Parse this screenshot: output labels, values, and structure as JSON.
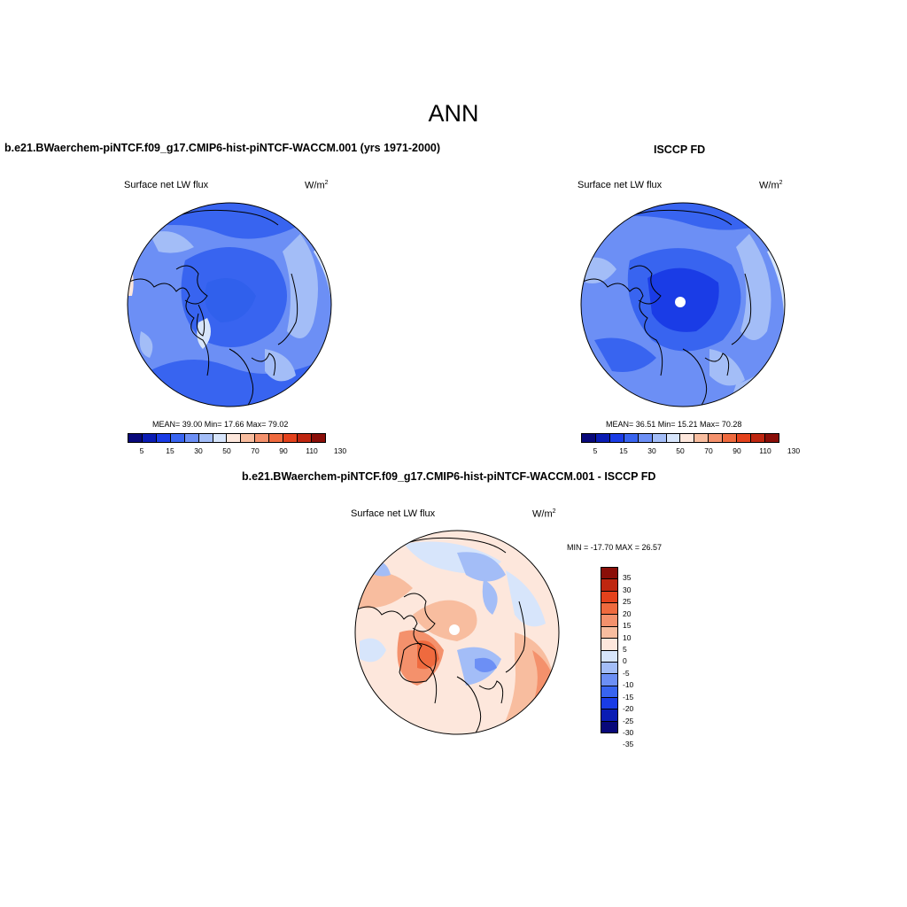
{
  "main_title": "ANN",
  "panels": [
    {
      "title": "b.e21.BWaerchem-piNTCF.f09_g17.CMIP6-hist-piNTCF-WACCM.001 (yrs 1971-2000)",
      "variable": "Surface net LW flux",
      "units_base": "W/m",
      "units_exp": "2",
      "stats": "MEAN=  39.00  Min=  17.66  Max=  79.02"
    },
    {
      "title": "ISCCP FD",
      "variable": "Surface net LW flux",
      "units_base": "W/m",
      "units_exp": "2",
      "stats": "MEAN=  36.51  Min=  15.21  Max=  70.28"
    },
    {
      "title": "b.e21.BWaerchem-piNTCF.f09_g17.CMIP6-hist-piNTCF-WACCM.001 - ISCCP FD",
      "variable": "Surface net LW flux",
      "units_base": "W/m",
      "units_exp": "2",
      "stats": "MIN = -17.70 MAX =  26.57"
    }
  ],
  "colorbar_abs": {
    "colors": [
      "#08087a",
      "#0a1cb4",
      "#1a3ce6",
      "#3864f0",
      "#6c8ff5",
      "#a3bdf7",
      "#d7e5fb",
      "#fde7dc",
      "#f8bd9f",
      "#f4916c",
      "#ef6a3e",
      "#e4421c",
      "#bf2610",
      "#8a0e08"
    ],
    "labels": [
      "5",
      "15",
      "30",
      "50",
      "70",
      "90",
      "110",
      "130"
    ]
  },
  "colorbar_diff": {
    "colors": [
      "#8a0e08",
      "#bf2610",
      "#e4421c",
      "#ef6a3e",
      "#f4916c",
      "#f8bd9f",
      "#fde7dc",
      "#d7e5fb",
      "#a3bdf7",
      "#6c8ff5",
      "#3864f0",
      "#1a3ce6",
      "#0a1cb4",
      "#08087a"
    ],
    "labels": [
      "35",
      "30",
      "25",
      "20",
      "15",
      "10",
      "5",
      "0",
      "-5",
      "-10",
      "-15",
      "-20",
      "-25",
      "-30",
      "-35"
    ]
  }
}
